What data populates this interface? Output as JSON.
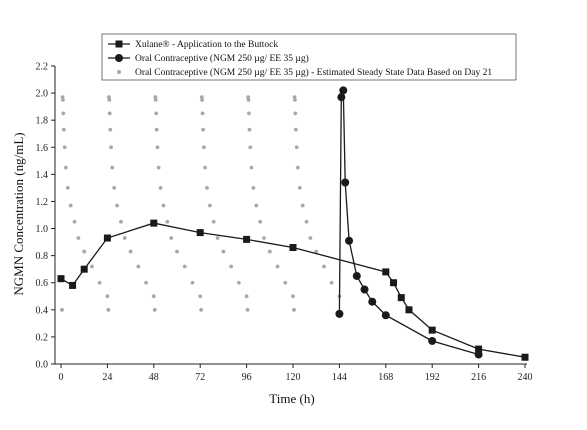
{
  "chart_data": {
    "type": "line",
    "title": "",
    "xlabel": "Time (h)",
    "ylabel": "NGMN Concentration (ng/mL)",
    "xlim": [
      0,
      240
    ],
    "ylim": [
      0.0,
      2.2
    ],
    "xticks": [
      0,
      24,
      48,
      72,
      96,
      120,
      144,
      168,
      192,
      216,
      240
    ],
    "yticks": [
      0.0,
      0.2,
      0.4,
      0.6,
      0.8,
      1.0,
      1.2,
      1.4,
      1.6,
      1.8,
      2.0,
      2.2
    ],
    "ytick_labels": [
      "0.0",
      "0.2",
      "0.4",
      "0.6",
      "0.8",
      "1.0",
      "1.2",
      "1.4",
      "1.6",
      "1.8",
      "2.0",
      "2.2"
    ],
    "grid": false,
    "legend_position": "top",
    "series": [
      {
        "name": "Xulane® - Application to the Buttock",
        "marker": "square",
        "style": "line",
        "color": "#1a1a1a",
        "x": [
          0,
          6,
          12,
          24,
          48,
          72,
          96,
          120,
          168,
          172,
          176,
          180,
          192,
          216,
          240
        ],
        "y": [
          0.63,
          0.58,
          0.7,
          0.93,
          1.04,
          0.97,
          0.92,
          0.86,
          0.68,
          0.6,
          0.49,
          0.4,
          0.25,
          0.11,
          0.05
        ]
      },
      {
        "name": "Oral Contraceptive (NGM 250 µg/ EE 35 µg)",
        "marker": "circle",
        "style": "line",
        "color": "#1a1a1a",
        "x": [
          144,
          145,
          146,
          147,
          149,
          153,
          157,
          161,
          168,
          192,
          216
        ],
        "y": [
          0.37,
          1.97,
          2.02,
          1.34,
          0.91,
          0.65,
          0.55,
          0.46,
          0.36,
          0.17,
          0.07
        ]
      },
      {
        "name": "Oral Contraceptive (NGM 250 µg/ EE 35 µg) - Estimated Steady State Data Based on Day 21",
        "marker": "dot",
        "style": "scatter",
        "color": "#a8a8a8",
        "cycle_starts": [
          0,
          24,
          48,
          72,
          96,
          120
        ],
        "cycle_offsets": [
          0.5,
          0.8,
          1.0,
          1.2,
          1.5,
          1.9,
          2.5,
          3.5,
          5,
          7,
          9,
          12,
          16,
          20,
          24
        ],
        "cycle_values": [
          0.4,
          1.97,
          1.95,
          1.85,
          1.73,
          1.6,
          1.45,
          1.3,
          1.17,
          1.05,
          0.93,
          0.83,
          0.72,
          0.6,
          0.5
        ]
      }
    ]
  },
  "legend": {
    "entries": [
      "Xulane® - Application to the Buttock",
      "Oral Contraceptive (NGM 250 µg/ EE 35 µg)",
      "Oral Contraceptive (NGM 250 µg/ EE 35 µg) - Estimated Steady State Data Based on Day 21"
    ]
  },
  "colors": {
    "axis": "#222222",
    "line": "#1a1a1a",
    "scatter": "#a8a8a8",
    "background": "#ffffff"
  }
}
